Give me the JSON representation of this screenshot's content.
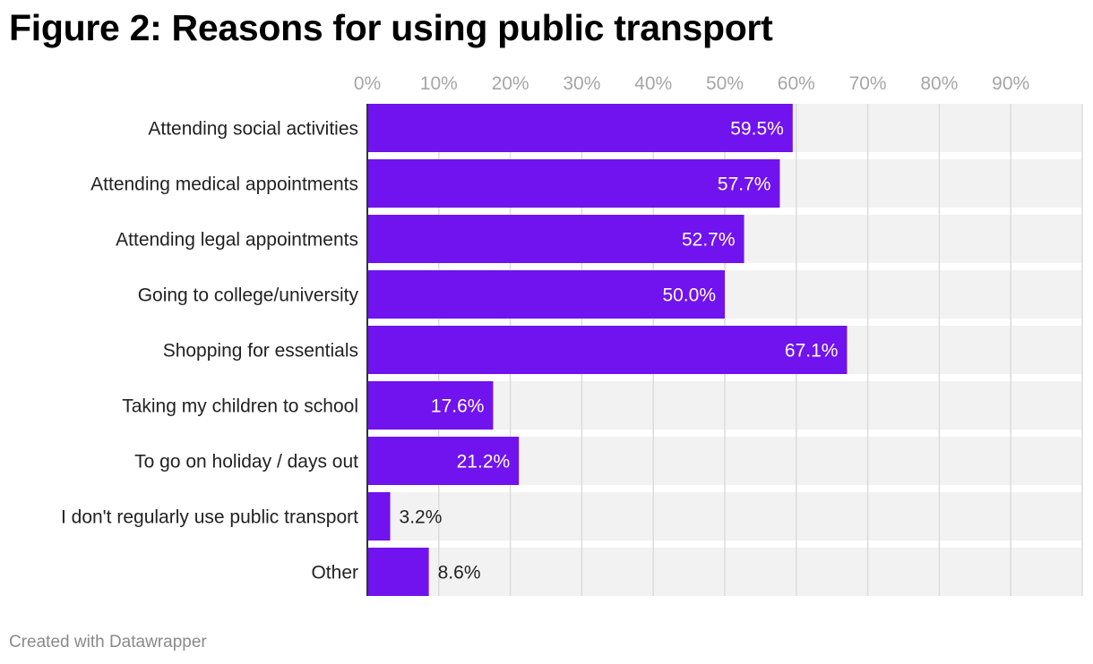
{
  "title": "Figure 2: Reasons for using public transport",
  "footer": "Created with Datawrapper",
  "colors": {
    "bar": "#7013ee",
    "row_background": "#f2f2f2",
    "gridline": "#dcdcdc",
    "label_inside": "#ffffff",
    "label_outside": "#222222",
    "axis_line": "#333333"
  },
  "chart_data": {
    "type": "bar",
    "orientation": "horizontal",
    "xlim": [
      0,
      100
    ],
    "x_ticks": [
      0,
      10,
      20,
      30,
      40,
      50,
      60,
      70,
      80,
      90
    ],
    "x_tick_labels": [
      "0%",
      "10%",
      "20%",
      "30%",
      "40%",
      "50%",
      "60%",
      "70%",
      "80%",
      "90%"
    ],
    "x_axis_position": "top",
    "grid": true,
    "categories": [
      "Attending social activities",
      "Attending medical appointments",
      "Attending legal appointments",
      "Going to college/university",
      "Shopping for essentials",
      "Taking my children to school",
      "To go on holiday / days out",
      "I don't regularly use public transport",
      "Other"
    ],
    "values": [
      59.5,
      57.7,
      52.7,
      50.0,
      67.1,
      17.6,
      21.2,
      3.2,
      8.6
    ],
    "value_labels": [
      "59.5%",
      "57.7%",
      "52.7%",
      "50.0%",
      "67.1%",
      "17.6%",
      "21.2%",
      "3.2%",
      "8.6%"
    ]
  }
}
